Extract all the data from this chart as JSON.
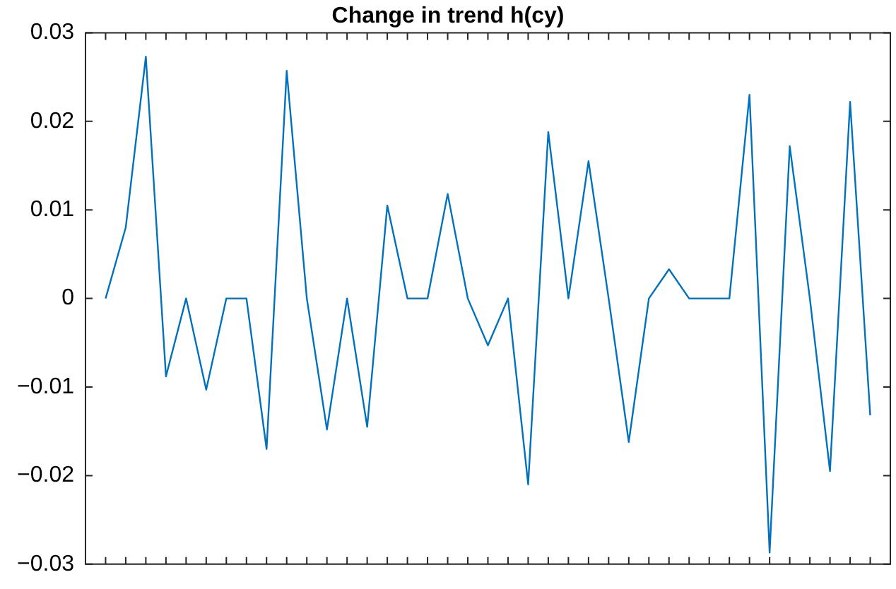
{
  "chart_data": {
    "type": "line",
    "title": "Change in trend h(cy)",
    "categories": [
      null,
      null,
      null,
      null,
      null,
      null,
      null,
      null,
      null,
      null,
      null,
      null,
      null,
      null,
      null,
      null,
      null,
      null,
      null,
      null,
      null,
      null,
      null,
      null,
      null,
      null,
      null,
      null,
      null,
      null,
      null,
      null,
      null,
      null,
      null,
      null,
      null,
      null,
      null
    ],
    "series": [
      {
        "color": "#0072bd",
        "values": [
          0,
          0.008,
          0.0273,
          -0.0088,
          0,
          -0.0103,
          0,
          0,
          -0.017,
          0.0257,
          0,
          -0.0148,
          0,
          -0.0145,
          0.0105,
          0,
          0,
          0.0118,
          0,
          -0.0053,
          0,
          -0.021,
          0.0188,
          0,
          0.0155,
          0,
          -0.0162,
          0,
          0.0033,
          0,
          0,
          0,
          0.023,
          -0.0287,
          0.0172,
          0,
          -0.0195,
          0.0222,
          -0.0132
        ]
      }
    ],
    "ylim": [
      -0.03,
      0.03
    ],
    "yticks": [
      {
        "value": -0.03,
        "label": "−0.03"
      },
      {
        "value": -0.02,
        "label": "−0.02"
      },
      {
        "value": -0.01,
        "label": "−0.01"
      },
      0,
      0.01,
      0.02,
      0.03
    ],
    "tick_labels": "y",
    "grid": false,
    "legend": false,
    "marker": "none",
    "line_style": "solid"
  }
}
